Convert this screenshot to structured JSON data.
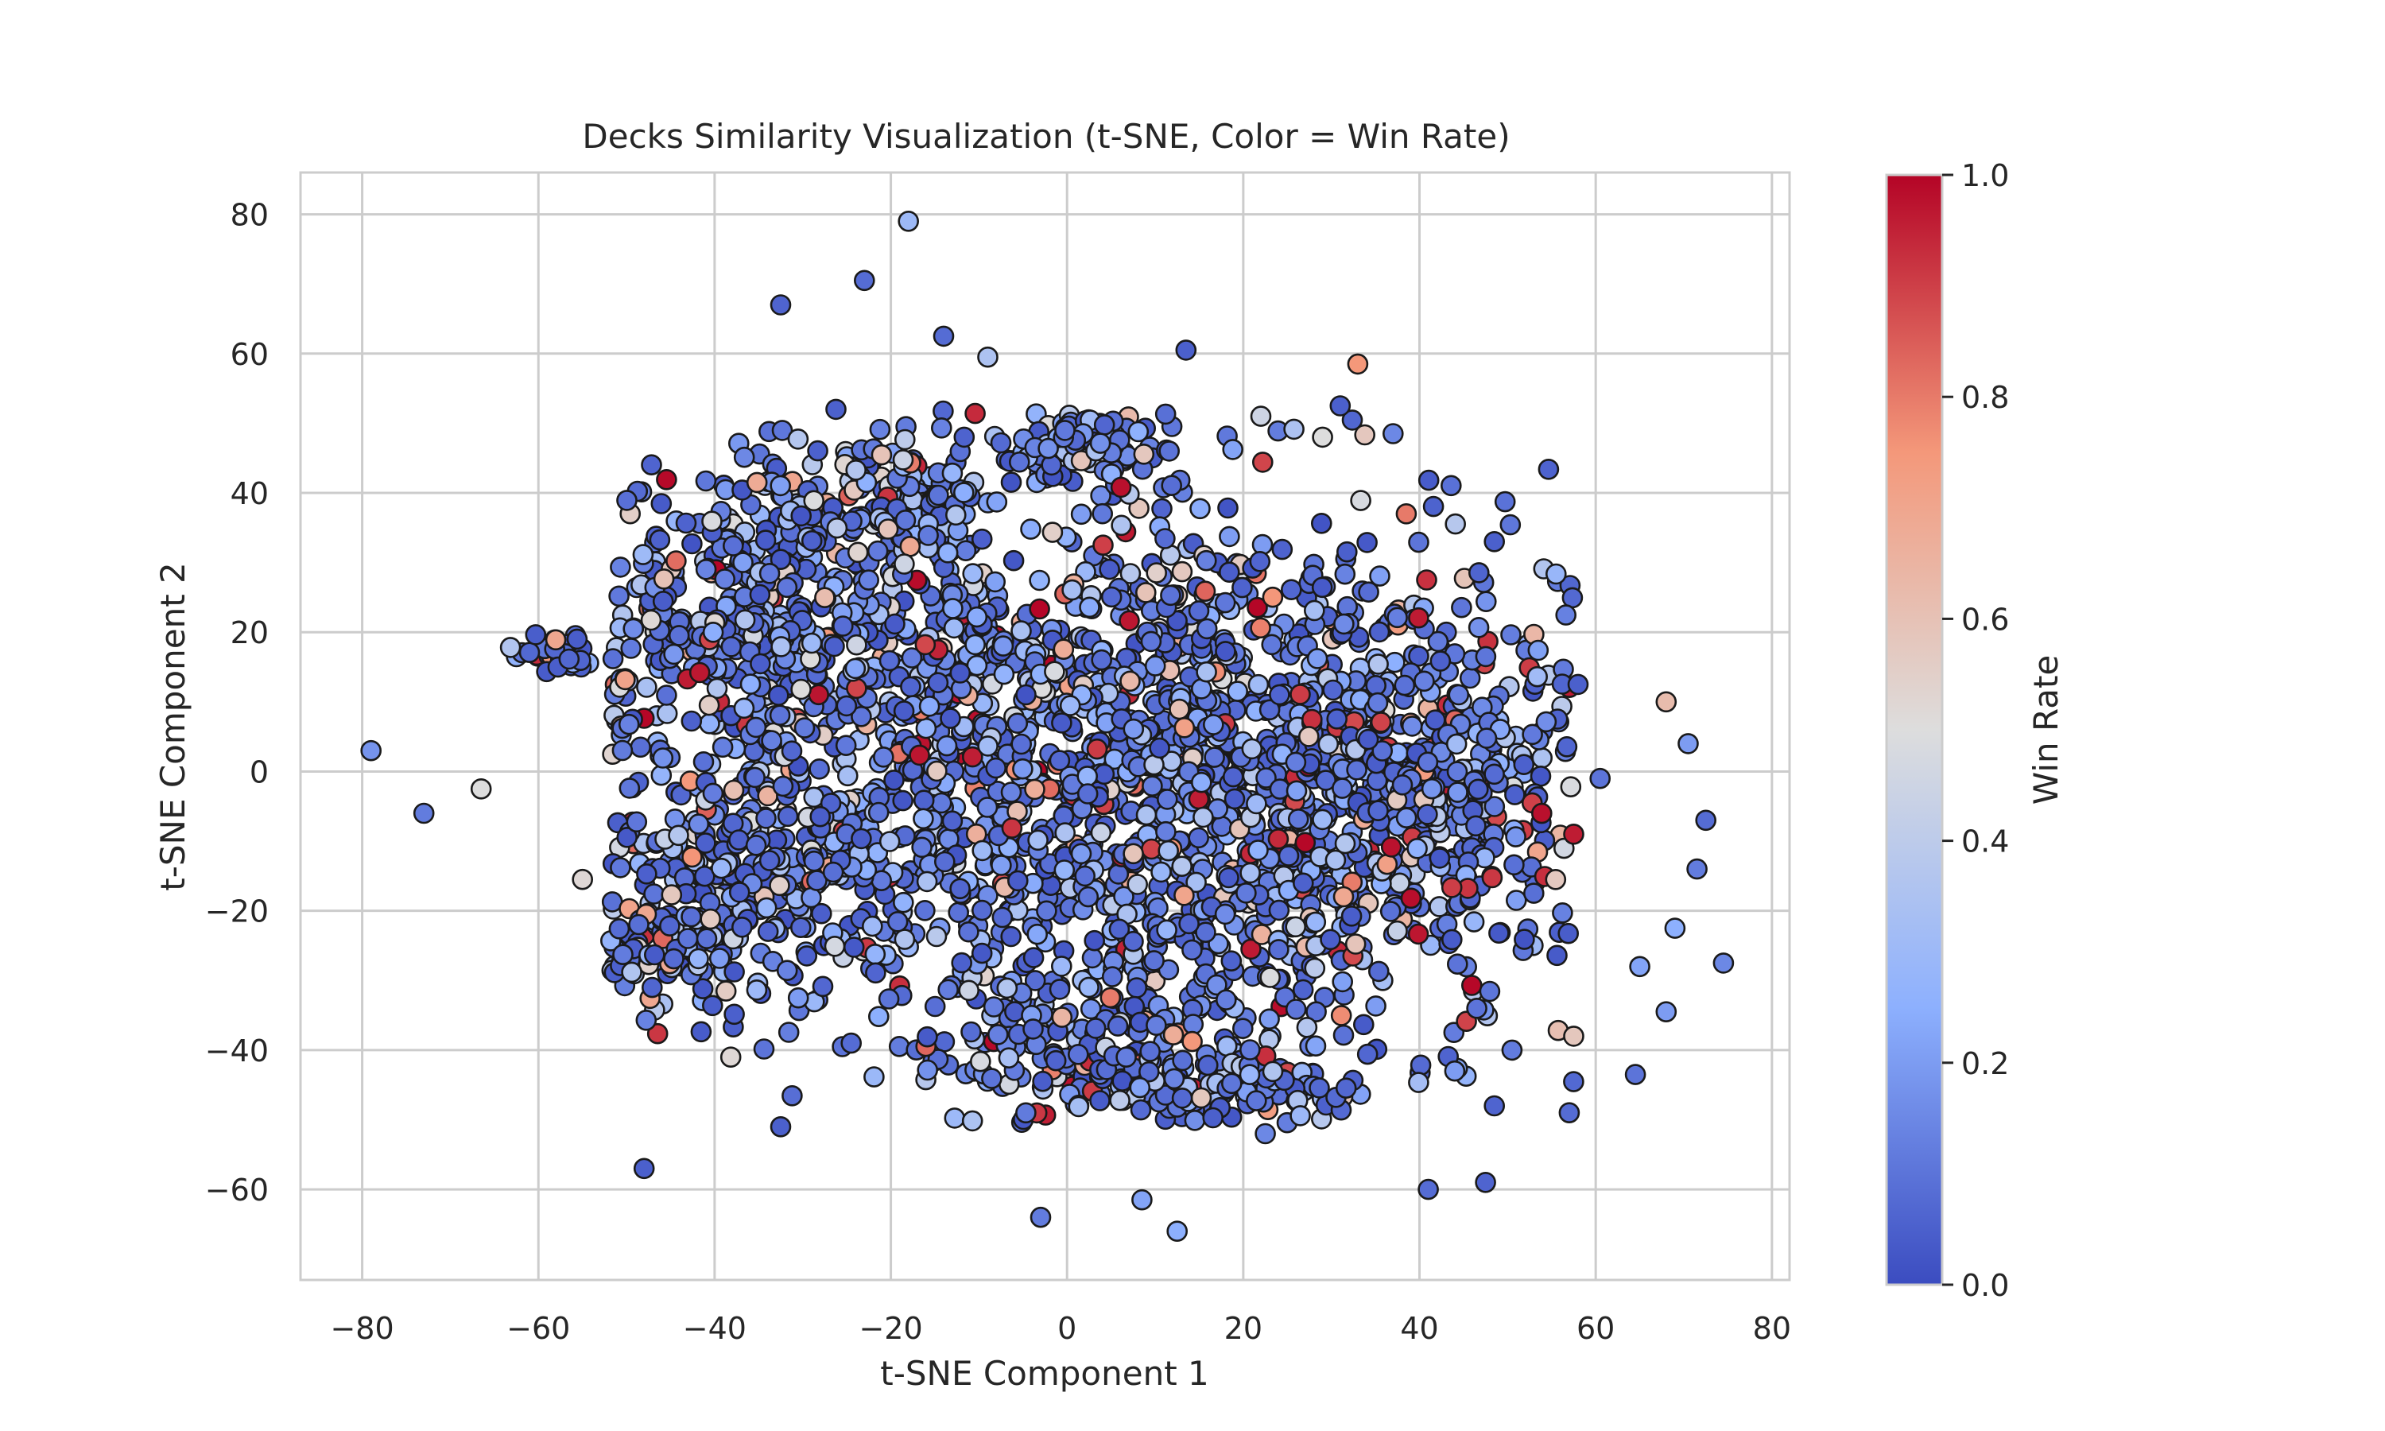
{
  "chart_data": {
    "type": "scatter",
    "title": "Decks Similarity Visualization (t-SNE, Color = Win Rate)",
    "xlabel": "t-SNE Component 1",
    "ylabel": "t-SNE Component 2",
    "xlim": [
      -87,
      82
    ],
    "ylim": [
      -73,
      86
    ],
    "xticks": [
      -80,
      -60,
      -40,
      -20,
      0,
      20,
      40,
      60,
      80
    ],
    "yticks": [
      -60,
      -40,
      -20,
      0,
      20,
      40,
      60,
      80
    ],
    "grid": true,
    "colormap": "coolwarm",
    "colorbar": {
      "label": "Win Rate",
      "range": [
        0,
        1
      ],
      "ticks": [
        0.0,
        0.2,
        0.4,
        0.6,
        0.8,
        1.0
      ],
      "colors": [
        "#3b4cc0",
        "#8db0fe",
        "#dddddd",
        "#f4987a",
        "#b40426"
      ]
    },
    "marker": {
      "edge_color": "#1a1a1a"
    },
    "approx_points": 3000,
    "clusters": [
      {
        "x": 0,
        "y": 0,
        "sx": 26,
        "sy": 19,
        "n": 1400
      },
      {
        "x": 25,
        "y": -5,
        "sx": 15,
        "sy": 18,
        "n": 550
      },
      {
        "x": -35,
        "y": 25,
        "sx": 9,
        "sy": 10,
        "n": 320
      },
      {
        "x": -35,
        "y": -15,
        "sx": 9,
        "sy": 9,
        "n": 220
      },
      {
        "x": 3,
        "y": -40,
        "sx": 9,
        "sy": 5,
        "n": 160
      },
      {
        "x": -18,
        "y": 40,
        "sx": 5,
        "sy": 5,
        "n": 110
      },
      {
        "x": 2,
        "y": 47,
        "sx": 4,
        "sy": 3,
        "n": 90
      },
      {
        "x": 43,
        "y": -5,
        "sx": 6,
        "sy": 9,
        "n": 140
      },
      {
        "x": -58,
        "y": 17,
        "sx": 2,
        "sy": 1.6,
        "n": 45
      },
      {
        "x": -45,
        "y": -25,
        "sx": 4,
        "sy": 3,
        "n": 70
      },
      {
        "x": 20,
        "y": -45,
        "sx": 7,
        "sy": 3,
        "n": 90
      }
    ],
    "outliers": [
      {
        "x": -79,
        "y": 3,
        "w": 0.18
      },
      {
        "x": -73,
        "y": -6,
        "w": 0.12
      },
      {
        "x": -66.5,
        "y": -2.5,
        "w": 0.5
      },
      {
        "x": -55,
        "y": -15.5,
        "w": 0.52
      },
      {
        "x": -48,
        "y": -57,
        "w": 0.05
      },
      {
        "x": -32.5,
        "y": 67,
        "w": 0.06
      },
      {
        "x": -32.5,
        "y": -51,
        "w": 0.05
      },
      {
        "x": -23,
        "y": 70.5,
        "w": 0.08
      },
      {
        "x": -18,
        "y": 79,
        "w": 0.3
      },
      {
        "x": -14,
        "y": 62.5,
        "w": 0.08
      },
      {
        "x": -9,
        "y": 59.5,
        "w": 0.35
      },
      {
        "x": -3,
        "y": -64,
        "w": 0.12
      },
      {
        "x": 8.5,
        "y": -61.5,
        "w": 0.22
      },
      {
        "x": 12.5,
        "y": -66,
        "w": 0.25
      },
      {
        "x": 13.5,
        "y": 60.5,
        "w": 0.05
      },
      {
        "x": 22,
        "y": 51,
        "w": 0.45
      },
      {
        "x": 29,
        "y": 48,
        "w": 0.5
      },
      {
        "x": 31,
        "y": 52.5,
        "w": 0.05
      },
      {
        "x": 33,
        "y": 58.5,
        "w": 0.75
      },
      {
        "x": 37,
        "y": 48.5,
        "w": 0.15
      },
      {
        "x": 38.5,
        "y": 37,
        "w": 0.8
      },
      {
        "x": 48.5,
        "y": 33,
        "w": 0.05
      },
      {
        "x": 58,
        "y": 12.5,
        "w": 0.05
      },
      {
        "x": 60.5,
        "y": -1,
        "w": 0.1
      },
      {
        "x": 57.5,
        "y": -9,
        "w": 0.96
      },
      {
        "x": 68,
        "y": 10,
        "w": 0.62
      },
      {
        "x": 70.5,
        "y": 4,
        "w": 0.2
      },
      {
        "x": 72.5,
        "y": -7,
        "w": 0.08
      },
      {
        "x": 71.5,
        "y": -14,
        "w": 0.12
      },
      {
        "x": 69,
        "y": -22.5,
        "w": 0.25
      },
      {
        "x": 74.5,
        "y": -27.5,
        "w": 0.15
      },
      {
        "x": 65,
        "y": -28,
        "w": 0.22
      },
      {
        "x": 68,
        "y": -34.5,
        "w": 0.2
      },
      {
        "x": 57.5,
        "y": -38,
        "w": 0.58
      },
      {
        "x": 64.5,
        "y": -43.5,
        "w": 0.1
      },
      {
        "x": 57,
        "y": -49,
        "w": 0.08
      },
      {
        "x": 48.5,
        "y": -48,
        "w": 0.06
      },
      {
        "x": 50.5,
        "y": -40,
        "w": 0.12
      },
      {
        "x": 44,
        "y": -43,
        "w": 0.2
      },
      {
        "x": 47.5,
        "y": -59,
        "w": 0.06
      },
      {
        "x": 41,
        "y": -60,
        "w": 0.08
      },
      {
        "x": 46.5,
        "y": -34,
        "w": 0.1
      },
      {
        "x": 22.5,
        "y": -52,
        "w": 0.15
      },
      {
        "x": -30.5,
        "y": -32.5,
        "w": 0.2
      },
      {
        "x": -25.5,
        "y": -39.5,
        "w": 0.1
      },
      {
        "x": -24.5,
        "y": -39,
        "w": 0.08
      }
    ]
  }
}
